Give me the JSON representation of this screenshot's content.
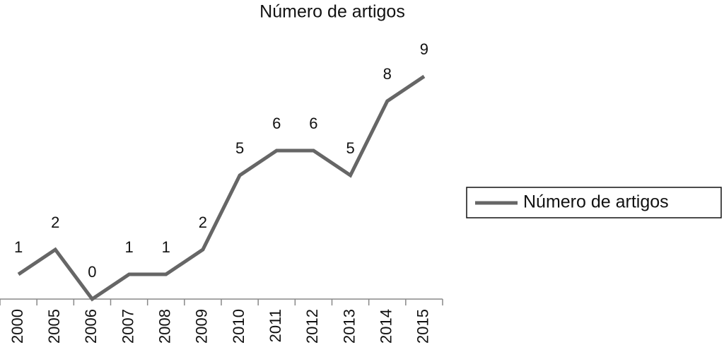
{
  "chart_data": {
    "type": "line",
    "title": "Número de artigos",
    "categories": [
      "2000",
      "2005",
      "2006",
      "2007",
      "2008",
      "2009",
      "2010",
      "2011",
      "2012",
      "2013",
      "2014",
      "2015"
    ],
    "series": [
      {
        "name": "Número de artigos",
        "color": "#666666",
        "values": [
          1,
          2,
          0,
          1,
          1,
          2,
          5,
          6,
          6,
          5,
          8,
          9
        ]
      }
    ],
    "legend": "right"
  }
}
